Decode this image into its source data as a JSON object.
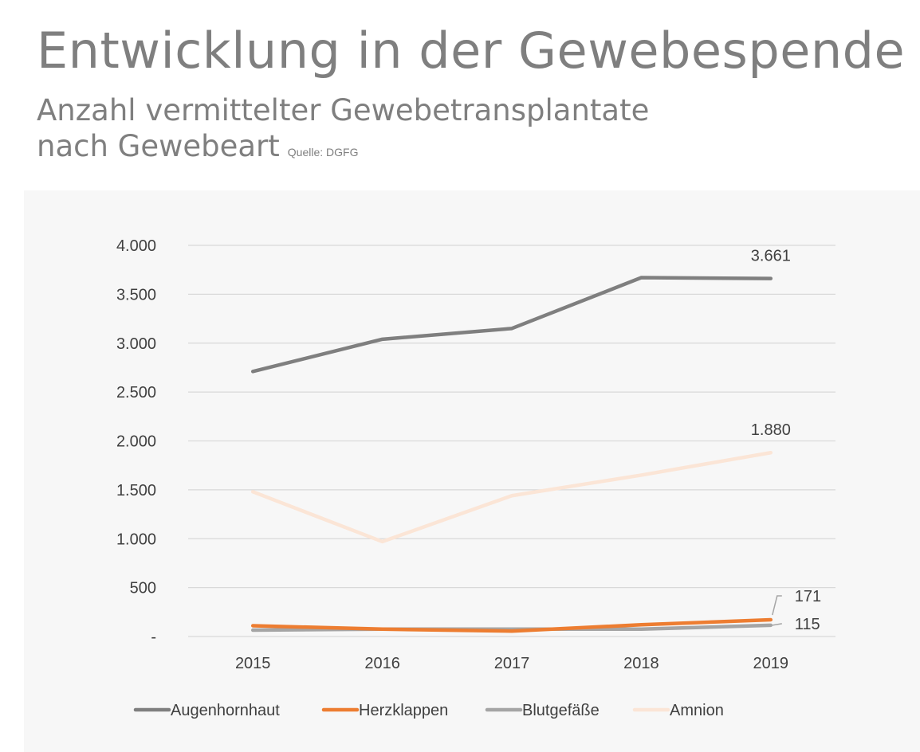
{
  "header": {
    "title": "Entwicklung in der Gewebespende",
    "subtitle_line1": "Anzahl vermittelter Gewebetransplantate",
    "subtitle_line2": "nach Gewebeart",
    "source": "Quelle: DGFG"
  },
  "colors": {
    "Augenhornhaut": "#7f7f7f",
    "Herzklappen": "#ed7d31",
    "Blutgefäße": "#a5a5a5",
    "Amnion": "#fbe5d6",
    "grid": "#d9d9d9",
    "text": "#404040"
  },
  "chart_data": {
    "type": "line",
    "title": "",
    "xlabel": "",
    "ylabel": "",
    "categories": [
      "2015",
      "2016",
      "2017",
      "2018",
      "2019"
    ],
    "ylim": [
      0,
      4000
    ],
    "yticks": [
      0,
      500,
      1000,
      1500,
      2000,
      2500,
      3000,
      3500,
      4000
    ],
    "ytick_labels": [
      "-",
      "500",
      "1.000",
      "1.500",
      "2.000",
      "2.500",
      "3.000",
      "3.500",
      "4.000"
    ],
    "grid": true,
    "legend_position": "bottom",
    "series": [
      {
        "name": "Augenhornhaut",
        "values": [
          2710,
          3040,
          3150,
          3670,
          3661
        ]
      },
      {
        "name": "Herzklappen",
        "values": [
          110,
          75,
          55,
          120,
          171
        ]
      },
      {
        "name": "Blutgefäße",
        "values": [
          65,
          75,
          75,
          75,
          115
        ]
      },
      {
        "name": "Amnion",
        "values": [
          1480,
          970,
          1440,
          1650,
          1880
        ]
      }
    ],
    "data_labels": [
      {
        "series": "Augenhornhaut",
        "index": 4,
        "text": "3.661"
      },
      {
        "series": "Amnion",
        "index": 4,
        "text": "1.880"
      },
      {
        "series": "Herzklappen",
        "index": 4,
        "text": "171"
      },
      {
        "series": "Blutgefäße",
        "index": 4,
        "text": "115"
      }
    ]
  }
}
